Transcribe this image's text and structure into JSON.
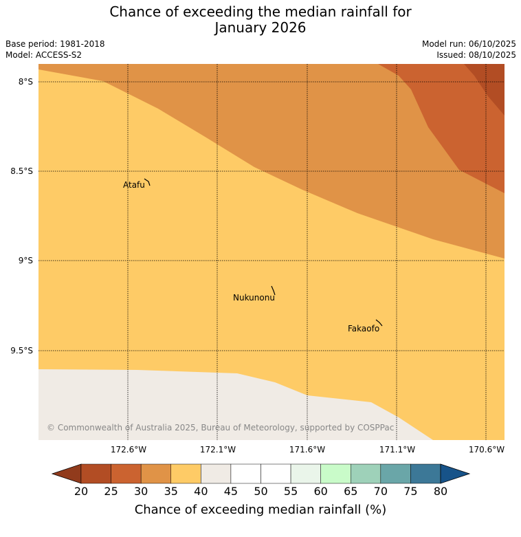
{
  "title": {
    "line1": "Chance of exceeding the median rainfall for",
    "line2": "January 2026"
  },
  "meta": {
    "base_period": "Base period: 1981-2018",
    "model": "Model: ACCESS-S2",
    "model_run": "Model run: 06/10/2025",
    "issued": "Issued: 08/10/2025"
  },
  "map": {
    "lat_labels": [
      "8°S",
      "8.5°S",
      "9°S",
      "9.5°S"
    ],
    "lon_labels": [
      "172.6°W",
      "172.1°W",
      "171.6°W",
      "171.1°W",
      "170.6°W"
    ],
    "places": [
      {
        "name": "Atafu"
      },
      {
        "name": "Nukunonu"
      },
      {
        "name": "Fakaofo"
      }
    ],
    "copyright": "© Commonwealth of Australia 2025, Bureau of Meteorology, supported by COSPPac",
    "region_colors": {
      "20-25": "#b24d24",
      "25-30": "#cb6330",
      "30-35": "#e09347",
      "35-40": "#fecb66",
      "40-45": "#f0ebe5"
    }
  },
  "colorbar": {
    "ticks": [
      "20",
      "25",
      "30",
      "35",
      "40",
      "45",
      "50",
      "55",
      "60",
      "65",
      "70",
      "75",
      "80"
    ],
    "under_color": "#913b1c",
    "over_color": "#175389",
    "colors": [
      "#b24d24",
      "#cb6330",
      "#e09347",
      "#fecb66",
      "#f0ebe5",
      "#ffffff",
      "#ffffff",
      "#eaf5ea",
      "#c9fbc9",
      "#9ed1b9",
      "#6aa6a8",
      "#3c7897"
    ],
    "title": "Chance of exceeding median rainfall (%)"
  }
}
